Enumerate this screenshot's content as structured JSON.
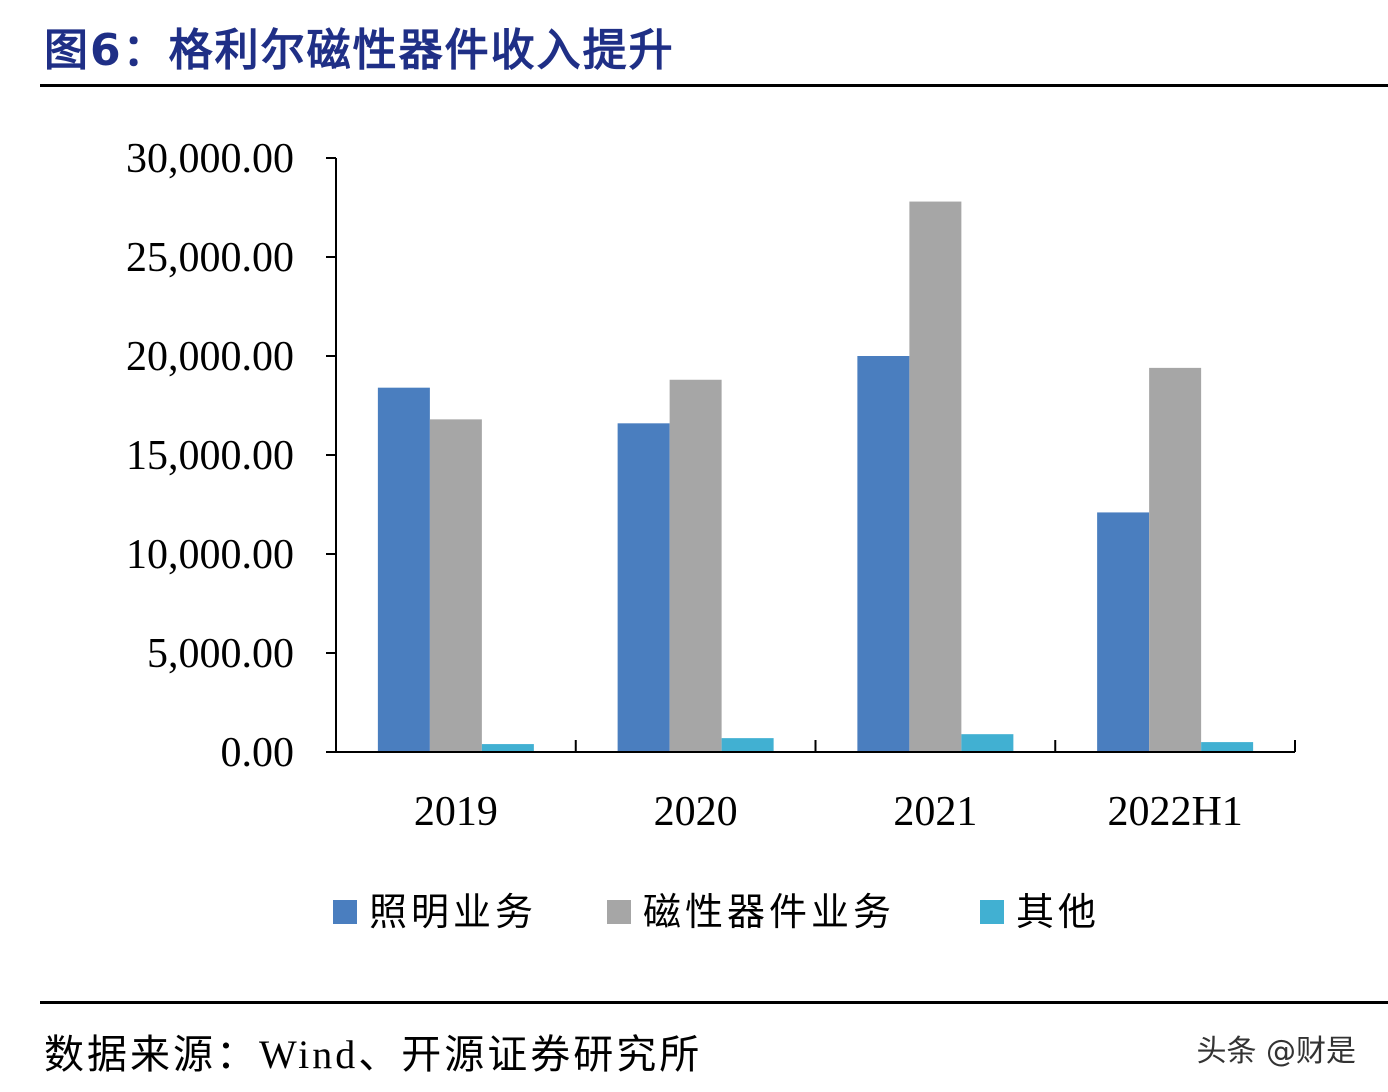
{
  "figure_title": "图6：格利尔磁性器件收入提升",
  "source_note": "数据来源：Wind、开源证券研究所",
  "watermark": "头条 @财是",
  "chart_data": {
    "type": "bar",
    "categories": [
      "2019",
      "2020",
      "2021",
      "2022H1"
    ],
    "series": [
      {
        "name": "照明业务",
        "color": "#4a7ebf",
        "values": [
          18400,
          16600,
          20000,
          12100
        ]
      },
      {
        "name": "磁性器件业务",
        "color": "#a6a6a6",
        "values": [
          16800,
          18800,
          27800,
          19400
        ]
      },
      {
        "name": "其他",
        "color": "#41b0d2",
        "values": [
          400,
          700,
          900,
          500
        ]
      }
    ],
    "y_ticks": [
      "0.00",
      "5,000.00",
      "10,000.00",
      "15,000.00",
      "20,000.00",
      "25,000.00",
      "30,000.00"
    ],
    "ylim": [
      0,
      30000
    ],
    "grid": false,
    "legend_position": "bottom"
  }
}
